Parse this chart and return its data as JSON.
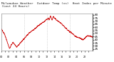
{
  "title": "Milwaukee Weather  Outdoor Temp (vs)  Heat Index per Minute (Last 24 Hours)",
  "line_color": "#cc0000",
  "bg_color": "#ffffff",
  "plot_bg_color": "#ffffff",
  "grid_color": "#bbbbbb",
  "ylim": [
    22,
    82
  ],
  "yticks": [
    25,
    30,
    35,
    40,
    45,
    50,
    55,
    60,
    65,
    70,
    75,
    80
  ],
  "title_fontsize": 3.2,
  "tick_fontsize": 3.0,
  "line_width": 0.6,
  "num_points": 1440,
  "vgrid_interval": 360
}
